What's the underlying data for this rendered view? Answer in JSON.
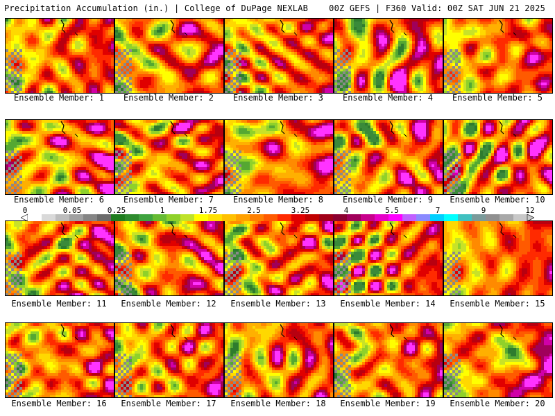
{
  "header": {
    "left": "Precipitation Accumulation (in.) | College of DuPage NEXLAB",
    "right": "00Z GEFS | F360 Valid: 00Z SAT JUN 21 2025"
  },
  "member_label_prefix": "Ensemble Member: ",
  "members": [
    {
      "number": "1"
    },
    {
      "number": "2"
    },
    {
      "number": "3"
    },
    {
      "number": "4"
    },
    {
      "number": "5"
    },
    {
      "number": "6"
    },
    {
      "number": "7"
    },
    {
      "number": "8"
    },
    {
      "number": "9"
    },
    {
      "number": "10"
    },
    {
      "number": "11"
    },
    {
      "number": "12"
    },
    {
      "number": "13"
    },
    {
      "number": "14"
    },
    {
      "number": "15"
    },
    {
      "number": "16"
    },
    {
      "number": "17"
    },
    {
      "number": "18"
    },
    {
      "number": "19"
    },
    {
      "number": "20"
    }
  ],
  "colorbar": {
    "tick_labels": [
      "0",
      "0.05",
      "0.25",
      "1",
      "1.75",
      "2.5",
      "3.25",
      "4",
      "5.5",
      "7",
      "9",
      "12"
    ],
    "colors": [
      "#ffffff",
      "#d9d9d9",
      "#bdbdbd",
      "#a0a0a0",
      "#858585",
      "#6b6b6b",
      "#1e7c1e",
      "#2e8b2e",
      "#3fa33f",
      "#66bb33",
      "#8fd12a",
      "#bfe22a",
      "#ffff00",
      "#ffe000",
      "#ffc000",
      "#ffa000",
      "#ff7f00",
      "#ff5a00",
      "#ff2a00",
      "#e00000",
      "#c00000",
      "#a00018",
      "#8b0030",
      "#a0005a",
      "#c8008c",
      "#e600c8",
      "#ff00ff",
      "#c060ff",
      "#8a8aff",
      "#00d0ff",
      "#00ffff",
      "#40c0c0",
      "#7a9a9a",
      "#909090",
      "#a8a8a8",
      "#c8c8c8"
    ]
  }
}
